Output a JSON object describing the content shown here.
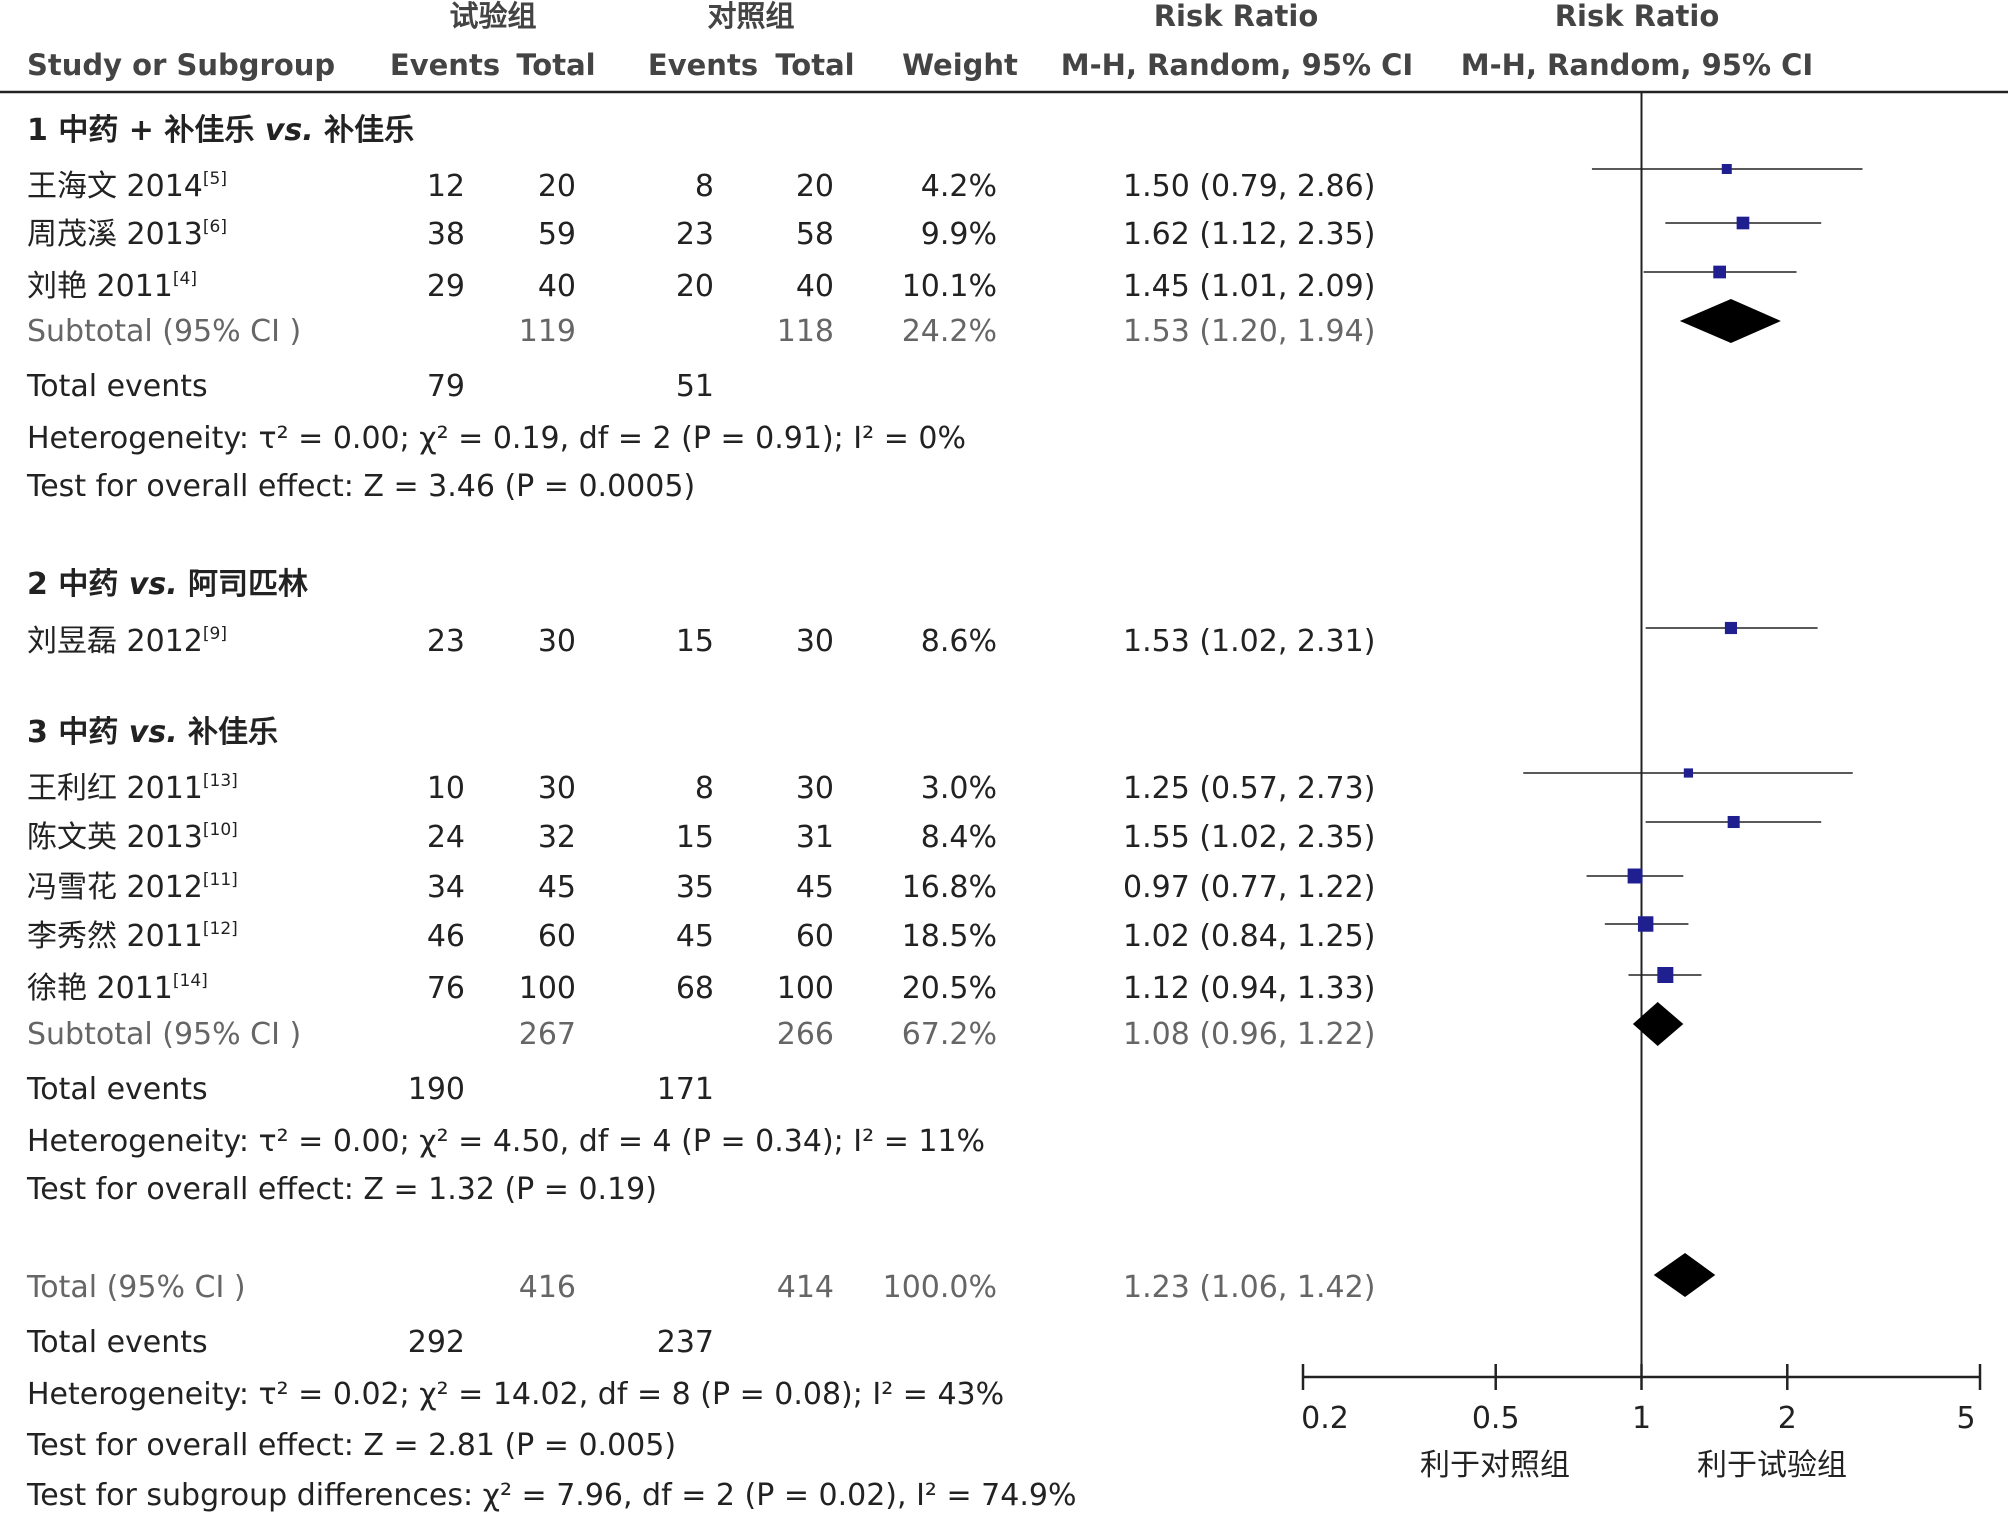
{
  "header": {
    "exp_group": "试验组",
    "ctrl_group": "对照组",
    "rr_label_1": "Risk Ratio",
    "rr_label_2": "Risk Ratio",
    "study_col": "Study or Subgroup",
    "events_1": "Events",
    "total_1": "Total",
    "events_2": "Events",
    "total_2": "Total",
    "weight": "Weight",
    "method_1": "M-H, Random, 95% CI",
    "method_2": "M-H, Random, 95% CI"
  },
  "subgroups": [
    {
      "title_num": "1",
      "title_a": "中药 + 补佳乐",
      "title_vs": "vs.",
      "title_b": "补佳乐",
      "studies": [
        {
          "name": "王海文 2014",
          "ref": "[5]",
          "e1": "12",
          "t1": "20",
          "e2": "8",
          "t2": "20",
          "weight": "4.2%",
          "ci": "1.50 (0.79, 2.86)"
        },
        {
          "name": "周茂溪 2013",
          "ref": "[6]",
          "e1": "38",
          "t1": "59",
          "e2": "23",
          "t2": "58",
          "weight": "9.9%",
          "ci": "1.62 (1.12, 2.35)"
        },
        {
          "name": "刘艳 2011",
          "ref": "[4]",
          "e1": "29",
          "t1": "40",
          "e2": "20",
          "t2": "40",
          "weight": "10.1%",
          "ci": "1.45 (1.01, 2.09)"
        }
      ],
      "subtotal": {
        "label": "Subtotal (95% CI )",
        "t1": "119",
        "t2": "118",
        "weight": "24.2%",
        "ci": "1.53 (1.20, 1.94)"
      },
      "events_label": "Total events",
      "events1": "79",
      "events2": "51",
      "heterogeneity": "Heterogeneity: τ² = 0.00; χ² = 0.19, df = 2 (P = 0.91); I² = 0%",
      "overall": "Test for overall effect: Z = 3.46 (P = 0.0005)"
    },
    {
      "title_num": "2",
      "title_a": "中药",
      "title_vs": "vs.",
      "title_b": "阿司匹林",
      "studies": [
        {
          "name": "刘昱磊 2012",
          "ref": "[9]",
          "e1": "23",
          "t1": "30",
          "e2": "15",
          "t2": "30",
          "weight": "8.6%",
          "ci": "1.53 (1.02, 2.31)"
        }
      ]
    },
    {
      "title_num": "3",
      "title_a": "中药",
      "title_vs": "vs.",
      "title_b": "补佳乐",
      "studies": [
        {
          "name": "王利红 2011",
          "ref": "[13]",
          "e1": "10",
          "t1": "30",
          "e2": "8",
          "t2": "30",
          "weight": "3.0%",
          "ci": "1.25 (0.57, 2.73)"
        },
        {
          "name": "陈文英 2013",
          "ref": "[10]",
          "e1": "24",
          "t1": "32",
          "e2": "15",
          "t2": "31",
          "weight": "8.4%",
          "ci": "1.55 (1.02, 2.35)"
        },
        {
          "name": "冯雪花 2012",
          "ref": "[11]",
          "e1": "34",
          "t1": "45",
          "e2": "35",
          "t2": "45",
          "weight": "16.8%",
          "ci": "0.97 (0.77, 1.22)"
        },
        {
          "name": "李秀然 2011",
          "ref": "[12]",
          "e1": "46",
          "t1": "60",
          "e2": "45",
          "t2": "60",
          "weight": "18.5%",
          "ci": "1.02 (0.84, 1.25)"
        },
        {
          "name": "徐艳 2011",
          "ref": "[14]",
          "e1": "76",
          "t1": "100",
          "e2": "68",
          "t2": "100",
          "weight": "20.5%",
          "ci": "1.12 (0.94, 1.33)"
        }
      ],
      "subtotal": {
        "label": "Subtotal (95% CI )",
        "t1": "267",
        "t2": "266",
        "weight": "67.2%",
        "ci": "1.08 (0.96, 1.22)"
      },
      "events_label": "Total events",
      "events1": "190",
      "events2": "171",
      "heterogeneity": "Heterogeneity: τ² = 0.00; χ² = 4.50, df = 4 (P = 0.34); I² = 11%",
      "overall": "Test for overall effect: Z = 1.32 (P = 0.19)"
    }
  ],
  "total": {
    "label": "Total (95% CI )",
    "t1": "416",
    "t2": "414",
    "weight": "100.0%",
    "ci": "1.23 (1.06, 1.42)",
    "events_label": "Total events",
    "events1": "292",
    "events2": "237",
    "heterogeneity": "Heterogeneity: τ² = 0.02; χ² = 14.02, df = 8 (P = 0.08); I² = 43%",
    "overall": "Test for overall effect: Z = 2.81 (P = 0.005)",
    "subgroup_diff": "Test for subgroup differences: χ² = 7.96, df = 2 (P = 0.02), I² = 74.9%"
  },
  "axis": {
    "ticks": [
      "0.2",
      "0.5",
      "1",
      "2",
      "5"
    ],
    "favours_left": "利于对照组",
    "favours_right": "利于试验组"
  },
  "colors": {
    "marker": "#1f1f8f",
    "diamond": "#000000",
    "line": "#222222"
  },
  "chart_data": {
    "type": "forest",
    "scale": "log",
    "xlim": [
      0.2,
      5
    ],
    "reference": 1,
    "xticks": [
      0.2,
      0.5,
      1,
      2,
      5
    ],
    "studies": [
      {
        "rr": 1.5,
        "lo": 0.79,
        "hi": 2.86,
        "w": 4.2
      },
      {
        "rr": 1.62,
        "lo": 1.12,
        "hi": 2.35,
        "w": 9.9
      },
      {
        "rr": 1.45,
        "lo": 1.01,
        "hi": 2.09,
        "w": 10.1
      },
      {
        "rr": 1.53,
        "lo": 1.02,
        "hi": 2.31,
        "w": 8.6
      },
      {
        "rr": 1.25,
        "lo": 0.57,
        "hi": 2.73,
        "w": 3.0
      },
      {
        "rr": 1.55,
        "lo": 1.02,
        "hi": 2.35,
        "w": 8.4
      },
      {
        "rr": 0.97,
        "lo": 0.77,
        "hi": 1.22,
        "w": 16.8
      },
      {
        "rr": 1.02,
        "lo": 0.84,
        "hi": 1.25,
        "w": 18.5
      },
      {
        "rr": 1.12,
        "lo": 0.94,
        "hi": 1.33,
        "w": 20.5
      }
    ],
    "pooled": [
      {
        "rr": 1.53,
        "lo": 1.2,
        "hi": 1.94
      },
      {
        "rr": 1.08,
        "lo": 0.96,
        "hi": 1.22
      },
      {
        "rr": 1.23,
        "lo": 1.06,
        "hi": 1.42
      }
    ]
  }
}
